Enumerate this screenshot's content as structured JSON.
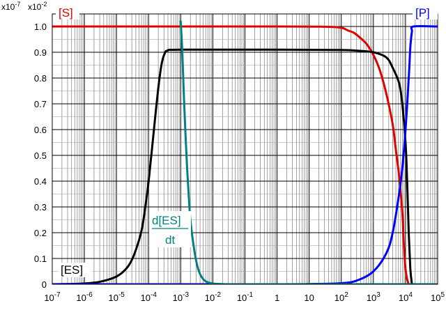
{
  "chart_data": {
    "type": "line",
    "title": "",
    "xlabel": "",
    "ylabel": "",
    "x_scale": "log",
    "xlim": [
      1e-07,
      100000
    ],
    "ylim": [
      0,
      1.0
    ],
    "grid": true,
    "corner_labels": {
      "left_axis_factor": "x10",
      "left_axis_exp": "-7",
      "right_axis_factor": "x10",
      "right_axis_exp": "-2"
    },
    "y_ticks": [
      "0",
      "0.1",
      "0.2",
      "0.3",
      "0.4",
      "0.5",
      "0.6",
      "0.7",
      "0.8",
      "0.9",
      "1.0"
    ],
    "x_ticks": [
      {
        "base": "10",
        "exp": "-7"
      },
      {
        "base": "10",
        "exp": "-6"
      },
      {
        "base": "10",
        "exp": "-5"
      },
      {
        "base": "10",
        "exp": "-4"
      },
      {
        "base": "10",
        "exp": "-3"
      },
      {
        "base": "10",
        "exp": "-2"
      },
      {
        "base": "10",
        "exp": "-1"
      },
      {
        "base": "1",
        "exp": ""
      },
      {
        "base": "10",
        "exp": ""
      },
      {
        "base": "10",
        "exp": "2"
      },
      {
        "base": "10",
        "exp": "3"
      },
      {
        "base": "10",
        "exp": "4"
      },
      {
        "base": "10",
        "exp": "5"
      }
    ],
    "series": [
      {
        "name": "[S]",
        "color": "#e00000",
        "points": [
          [
            1e-07,
            1.0
          ],
          [
            1,
            1.0
          ],
          [
            31.6,
            0.999
          ],
          [
            100,
            0.995
          ],
          [
            158,
            0.985
          ],
          [
            251,
            0.975
          ],
          [
            398,
            0.955
          ],
          [
            631,
            0.93
          ],
          [
            1000,
            0.89
          ],
          [
            1585,
            0.83
          ],
          [
            2512,
            0.74
          ],
          [
            3981,
            0.62
          ],
          [
            5012,
            0.52
          ],
          [
            6310,
            0.42
          ],
          [
            7943,
            0.28
          ],
          [
            8913,
            0.15
          ],
          [
            10000,
            0.06
          ],
          [
            11220,
            0.02
          ],
          [
            12589,
            0.0
          ]
        ]
      },
      {
        "name": "[ES]",
        "color": "#000000",
        "points": [
          [
            1e-07,
            0.0
          ],
          [
            3.16e-07,
            0.001
          ],
          [
            1e-06,
            0.003
          ],
          [
            3.16e-06,
            0.01
          ],
          [
            1e-05,
            0.03
          ],
          [
            2e-05,
            0.06
          ],
          [
            3.16e-05,
            0.1
          ],
          [
            5e-05,
            0.17
          ],
          [
            6.3e-05,
            0.22
          ],
          [
            7.9e-05,
            0.3
          ],
          [
            0.0001,
            0.4
          ],
          [
            0.000126,
            0.52
          ],
          [
            0.000158,
            0.64
          ],
          [
            0.0002,
            0.76
          ],
          [
            0.00025,
            0.85
          ],
          [
            0.000316,
            0.895
          ],
          [
            0.000398,
            0.907
          ],
          [
            0.001,
            0.91
          ],
          [
            1,
            0.91
          ],
          [
            100,
            0.909
          ],
          [
            316,
            0.906
          ],
          [
            1000,
            0.9
          ],
          [
            2512,
            0.88
          ],
          [
            3981,
            0.84
          ],
          [
            6310,
            0.78
          ],
          [
            7943,
            0.7
          ],
          [
            10000,
            0.55
          ],
          [
            11220,
            0.4
          ],
          [
            12589,
            0.2
          ],
          [
            14125,
            0.06
          ],
          [
            15849,
            0.0
          ]
        ]
      },
      {
        "name": "[P]",
        "color": "#0000ff",
        "points": [
          [
            1e-07,
            0.0
          ],
          [
            1,
            0.0
          ],
          [
            10,
            0.001
          ],
          [
            100,
            0.004
          ],
          [
            316,
            0.015
          ],
          [
            1000,
            0.05
          ],
          [
            2512,
            0.12
          ],
          [
            3981,
            0.2
          ],
          [
            6310,
            0.35
          ],
          [
            7943,
            0.45
          ],
          [
            10000,
            0.6
          ],
          [
            12589,
            0.8
          ],
          [
            14125,
            0.92
          ],
          [
            15849,
            0.98
          ],
          [
            17783,
            1.0
          ],
          [
            100000,
            1.0
          ]
        ]
      },
      {
        "name": "d[ES]/dt",
        "label_numerator": "d[ES]",
        "label_denominator": "dt",
        "color": "#008080",
        "points": [
          [
            0.001,
            1.02
          ],
          [
            0.00112,
            0.9
          ],
          [
            0.00126,
            0.72
          ],
          [
            0.00141,
            0.58
          ],
          [
            0.00158,
            0.45
          ],
          [
            0.00178,
            0.34
          ],
          [
            0.002,
            0.25
          ],
          [
            0.00251,
            0.15
          ],
          [
            0.00316,
            0.08
          ],
          [
            0.00398,
            0.04
          ],
          [
            0.005,
            0.02
          ],
          [
            0.0063,
            0.01
          ],
          [
            0.01,
            0.003
          ],
          [
            0.0316,
            0.0
          ],
          [
            1,
            0.0
          ],
          [
            100000,
            0.0
          ]
        ]
      }
    ],
    "series_labels": {
      "S": "[S]",
      "P": "[P]",
      "ES": "[ES]",
      "dES_num": "d[ES]",
      "dES_den": "dt"
    }
  }
}
